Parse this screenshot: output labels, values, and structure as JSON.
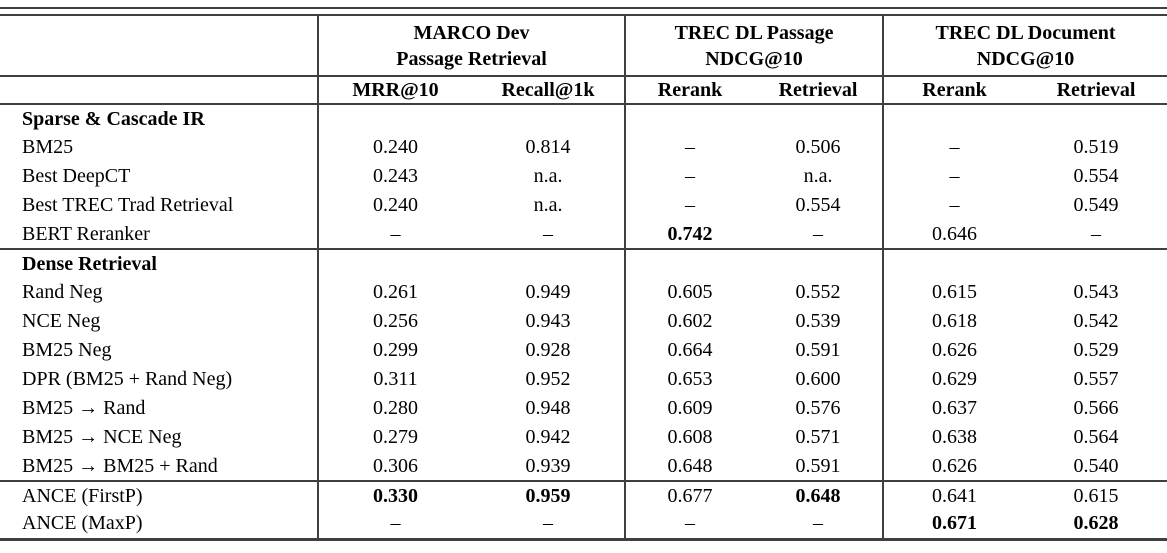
{
  "table": {
    "groups": [
      {
        "title": [
          "MARCO Dev",
          "Passage Retrieval"
        ],
        "columns": [
          "MRR@10",
          "Recall@1k"
        ]
      },
      {
        "title": [
          "TREC DL Passage",
          "NDCG@10"
        ],
        "columns": [
          "Rerank",
          "Retrieval"
        ]
      },
      {
        "title": [
          "TREC DL Document",
          "NDCG@10"
        ],
        "columns": [
          "Rerank",
          "Retrieval"
        ]
      }
    ],
    "sections": [
      {
        "label": "Sparse & Cascade IR",
        "rows": [
          {
            "label": "BM25",
            "cells": [
              "0.240",
              "0.814",
              "–",
              "0.506",
              "–",
              "0.519"
            ],
            "bold_cells": []
          },
          {
            "label": "Best DeepCT",
            "cells": [
              "0.243",
              "n.a.",
              "–",
              "n.a.",
              "–",
              "0.554"
            ],
            "bold_cells": []
          },
          {
            "label": "Best TREC Trad Retrieval",
            "cells": [
              "0.240",
              "n.a.",
              "–",
              "0.554",
              "–",
              "0.549"
            ],
            "bold_cells": []
          },
          {
            "label": "BERT Reranker",
            "cells": [
              "–",
              "–",
              "0.742",
              "–",
              "0.646",
              "–"
            ],
            "bold_cells": [
              2
            ]
          }
        ]
      },
      {
        "label": "Dense Retrieval",
        "rows": [
          {
            "label": "Rand Neg",
            "cells": [
              "0.261",
              "0.949",
              "0.605",
              "0.552",
              "0.615",
              "0.543"
            ],
            "bold_cells": []
          },
          {
            "label": "NCE Neg",
            "cells": [
              "0.256",
              "0.943",
              "0.602",
              "0.539",
              "0.618",
              "0.542"
            ],
            "bold_cells": []
          },
          {
            "label": "BM25 Neg",
            "cells": [
              "0.299",
              "0.928",
              "0.664",
              "0.591",
              "0.626",
              "0.529"
            ],
            "bold_cells": []
          },
          {
            "label": "DPR (BM25 + Rand Neg)",
            "cells": [
              "0.311",
              "0.952",
              "0.653",
              "0.600",
              "0.629",
              "0.557"
            ],
            "bold_cells": []
          },
          {
            "label": "BM25 → Rand",
            "cells": [
              "0.280",
              "0.948",
              "0.609",
              "0.576",
              "0.637",
              "0.566"
            ],
            "bold_cells": []
          },
          {
            "label": "BM25 → NCE Neg",
            "cells": [
              "0.279",
              "0.942",
              "0.608",
              "0.571",
              "0.638",
              "0.564"
            ],
            "bold_cells": []
          },
          {
            "label": "BM25 → BM25 + Rand",
            "cells": [
              "0.306",
              "0.939",
              "0.648",
              "0.591",
              "0.626",
              "0.540"
            ],
            "bold_cells": []
          }
        ]
      },
      {
        "label": null,
        "rows": [
          {
            "label": "ANCE (FirstP)",
            "cells": [
              "0.330",
              "0.959",
              "0.677",
              "0.648",
              "0.641",
              "0.615"
            ],
            "bold_cells": [
              0,
              1,
              3
            ]
          },
          {
            "label": "ANCE (MaxP)",
            "cells": [
              "–",
              "–",
              "–",
              "–",
              "0.671",
              "0.628"
            ],
            "bold_cells": [
              4,
              5
            ]
          }
        ]
      }
    ]
  }
}
